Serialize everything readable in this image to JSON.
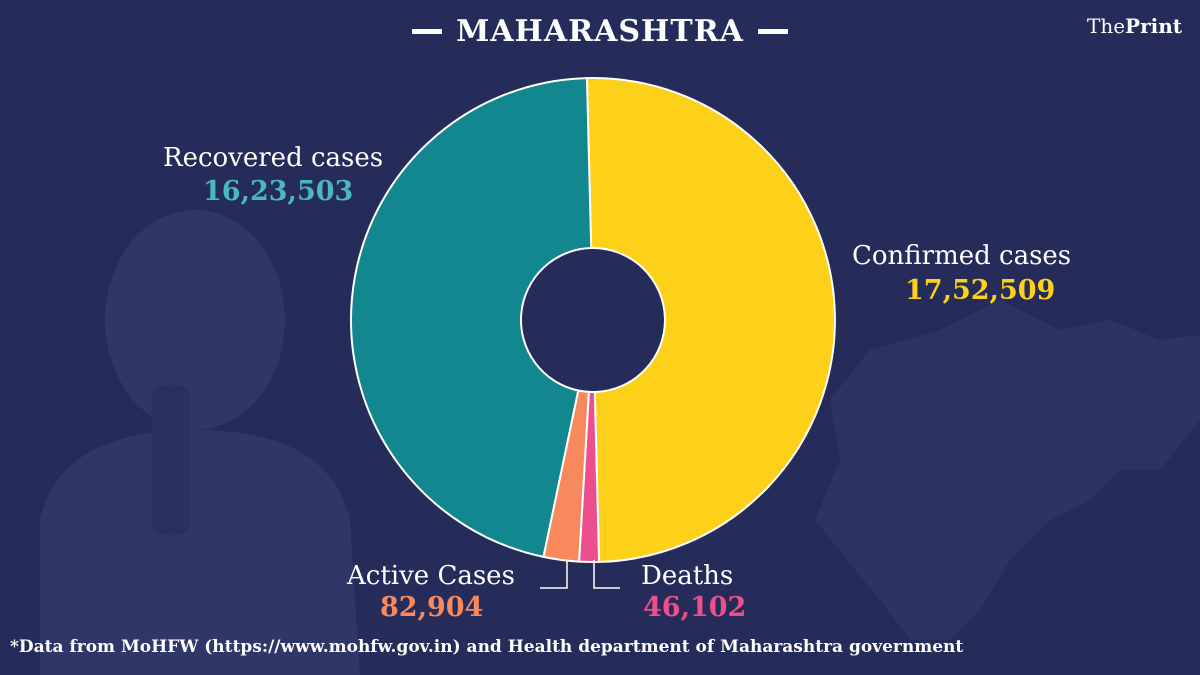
{
  "header": {
    "title": "MAHARASHTRA",
    "brand_prefix": "The",
    "brand_bold": "Print"
  },
  "chart_data": {
    "type": "pie",
    "title": "MAHARASHTRA",
    "slices": [
      {
        "label": "Confirmed cases",
        "value": 1752509,
        "display": "17,52,509",
        "color": "#fdd11a"
      },
      {
        "label": "Deaths",
        "value": 46102,
        "display": "46,102",
        "color": "#ec4f8c"
      },
      {
        "label": "Active Cases",
        "value": 82904,
        "display": "82,904",
        "color": "#f7895d"
      },
      {
        "label": "Recovered cases",
        "value": 1623503,
        "display": "16,23,503",
        "color": "#12878f"
      }
    ]
  },
  "footnote": "*Data from MoHFW (https://www.mohfw.gov.in)  and Health department of  Maharashtra government",
  "colors": {
    "background": "#252c5a",
    "recovered_value": "#4bb8c0",
    "confirmed_value": "#fdd11a",
    "active_value": "#f7895d",
    "deaths_value": "#ec4f8c"
  }
}
